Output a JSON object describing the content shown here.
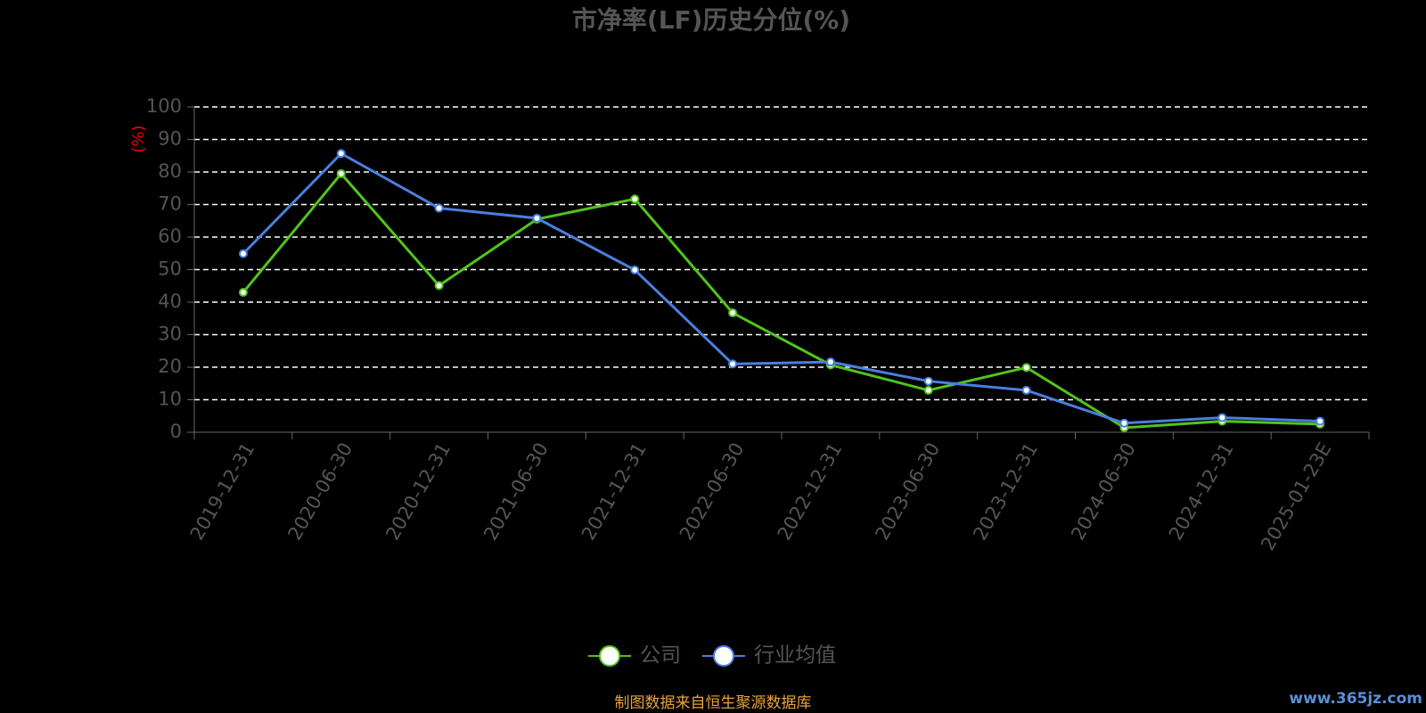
{
  "chart_data": {
    "type": "line",
    "title": "市净率(LF)历史分位(%)",
    "y_label": "(%)",
    "categories": [
      "2019-12-31",
      "2020-06-30",
      "2020-12-31",
      "2021-06-30",
      "2021-12-31",
      "2022-06-30",
      "2022-12-31",
      "2023-06-30",
      "2023-12-31",
      "2024-06-30",
      "2024-12-31",
      "2025-01-23E"
    ],
    "series": [
      {
        "name": "公司",
        "color": "#52c41a",
        "values": [
          43,
          79.5,
          45.1,
          65.5,
          71.7,
          36.7,
          20.7,
          12.9,
          19.9,
          1.4,
          3.4,
          2.5
        ]
      },
      {
        "name": "行业均值",
        "color": "#4a7fe0",
        "values": [
          54.9,
          85.7,
          68.9,
          65.8,
          49.9,
          21.0,
          21.6,
          15.7,
          12.9,
          2.8,
          4.5,
          3.4
        ]
      }
    ],
    "ylim": [
      0,
      100
    ],
    "yticks": [
      0,
      10,
      20,
      30,
      40,
      50,
      60,
      70,
      80,
      90,
      100
    ],
    "grid": true,
    "legend": "bottom",
    "source": "制图数据来自恒生聚源数据库",
    "watermark": "www.365jz.com"
  }
}
